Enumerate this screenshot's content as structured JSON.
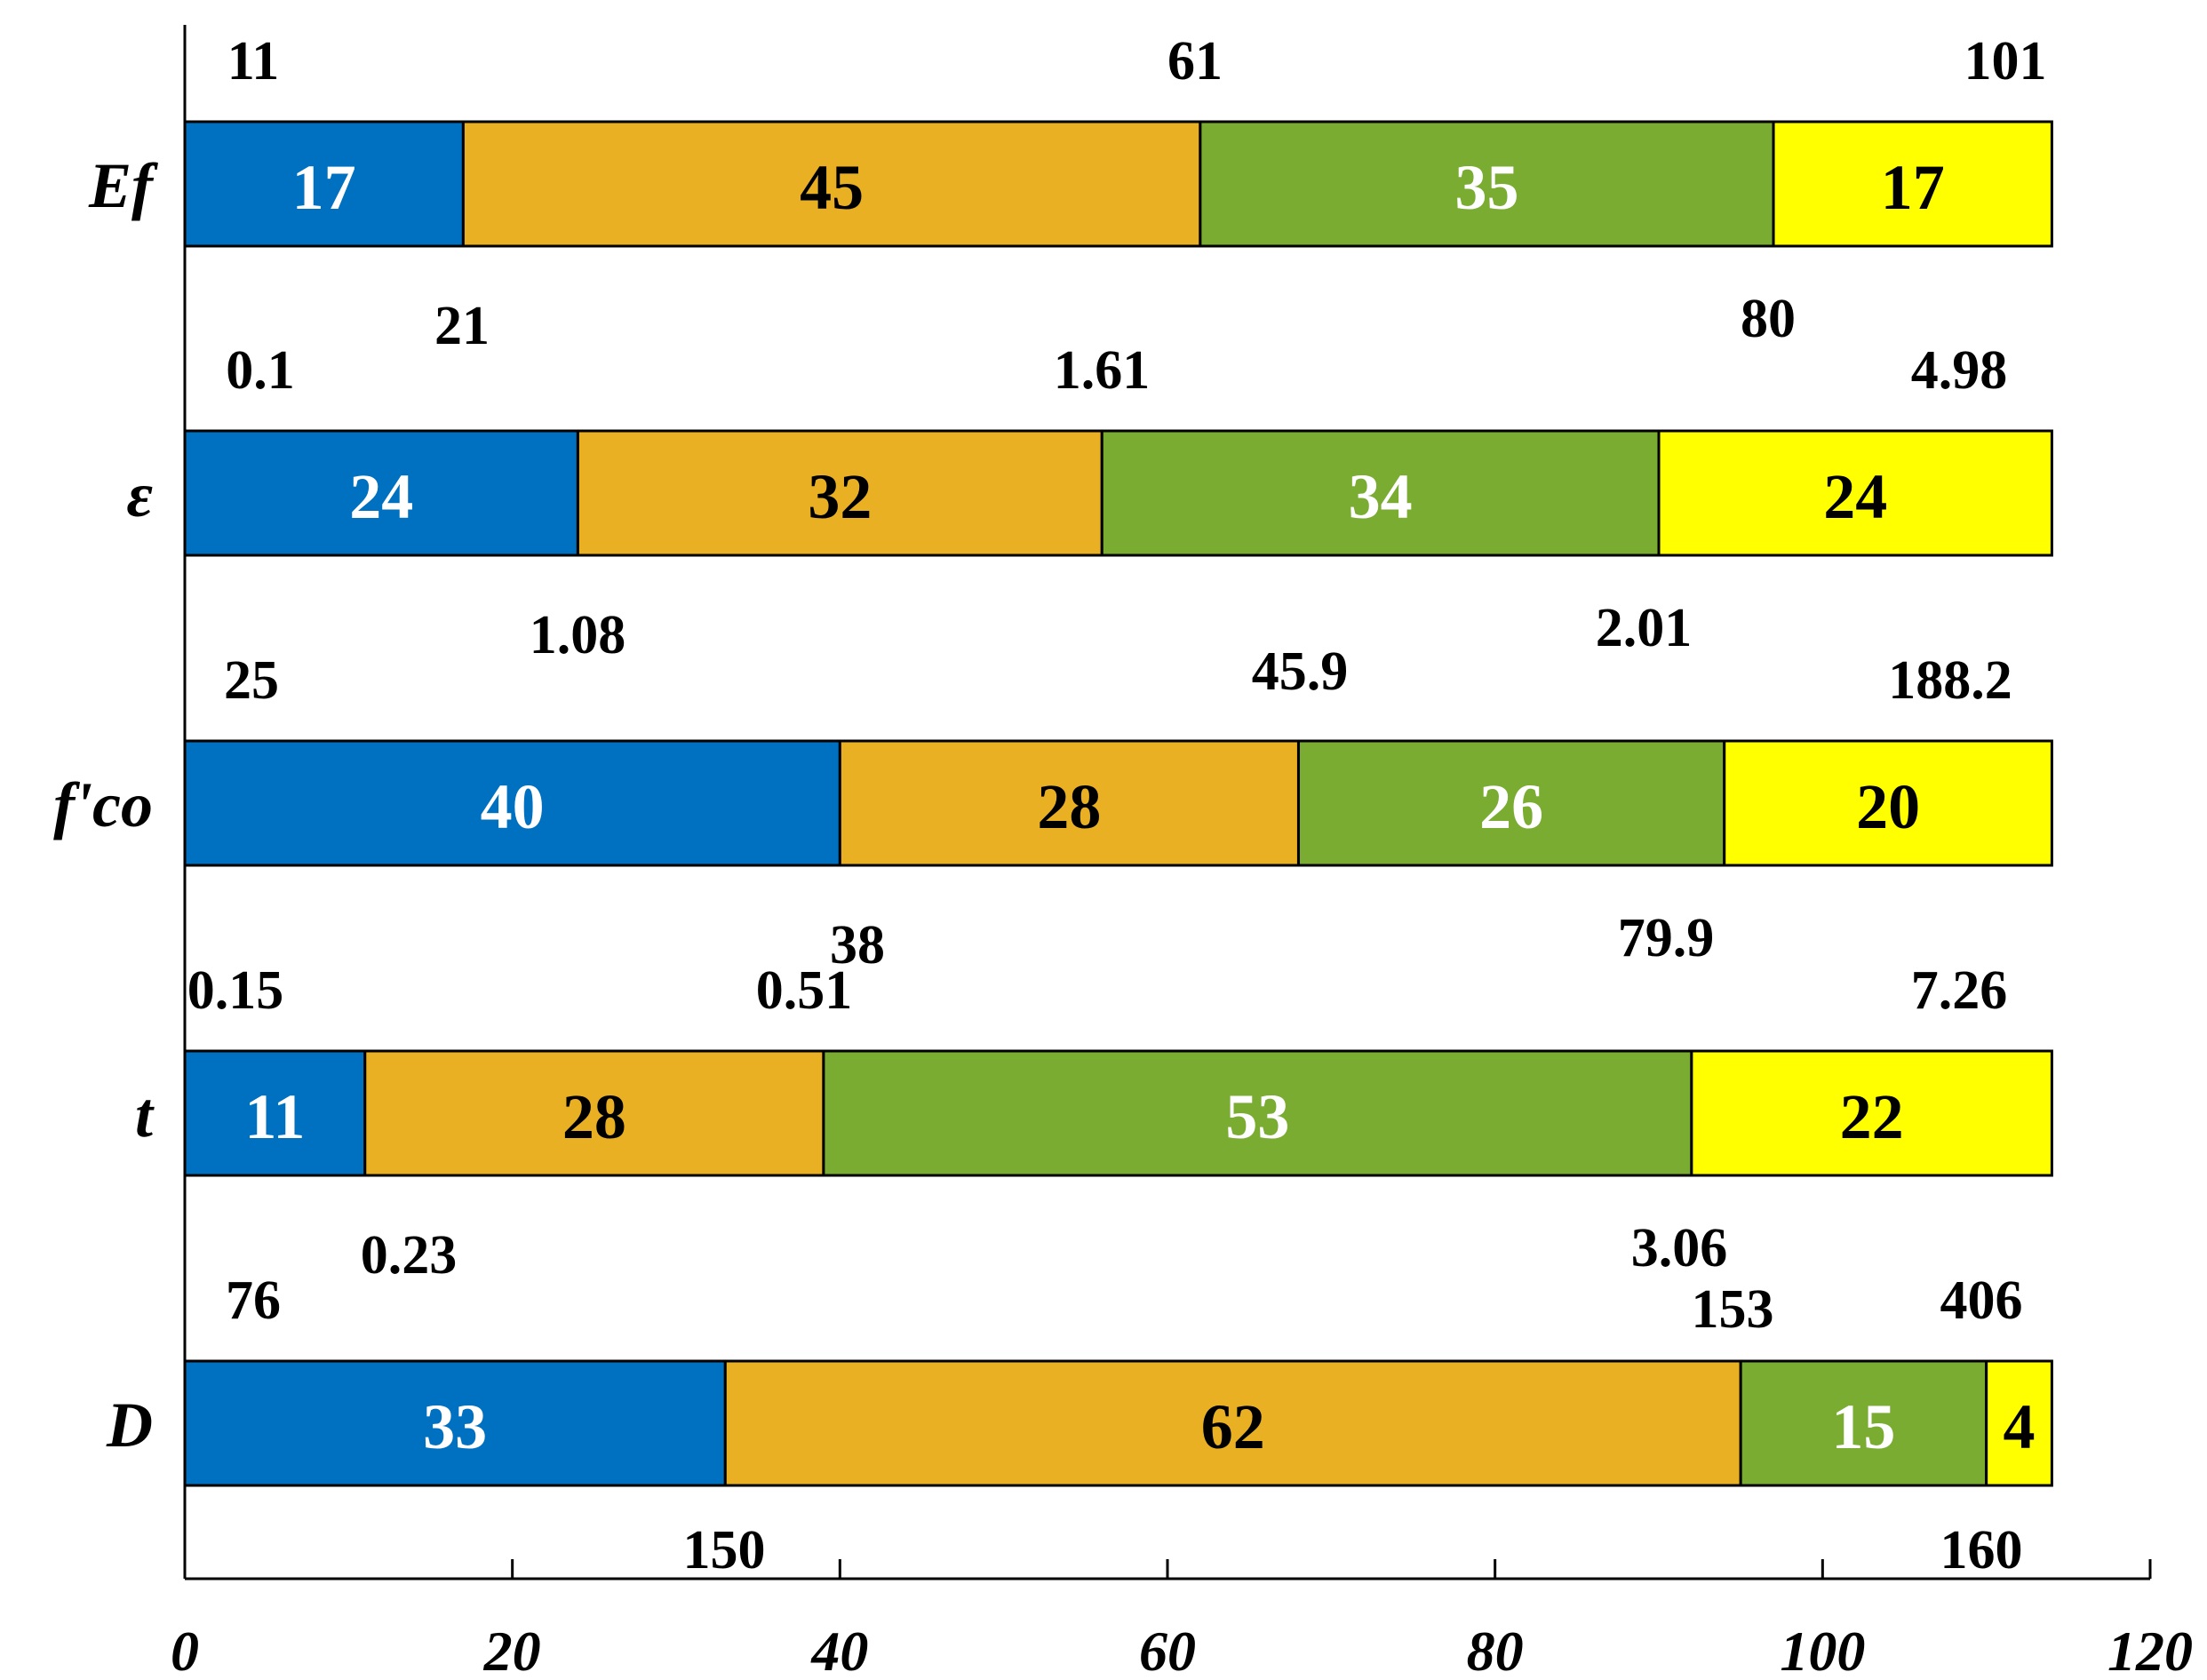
{
  "chart_data": {
    "type": "bar",
    "orientation": "horizontal",
    "stacked": true,
    "title": "",
    "xlabel": "",
    "ylabel": "",
    "xlim": [
      0,
      120
    ],
    "xticks": [
      "0",
      "20",
      "40",
      "60",
      "80",
      "100",
      "120"
    ],
    "grid": false,
    "legend": "none",
    "categories": [
      "Ef",
      "ε",
      "f'co",
      "t",
      "D"
    ],
    "segment_colors": [
      "#0070c0",
      "#eab024",
      "#7aac32",
      "#ffff00"
    ],
    "segment_text_colors": [
      "#ffffff",
      "#000000",
      "#ffffff",
      "#000000"
    ],
    "rows": [
      {
        "name": "Ef",
        "values": [
          17,
          45,
          35,
          17
        ],
        "labels": [
          "17",
          "45",
          "35",
          "17"
        ],
        "bounds": {
          "upper": [
            "11",
            "61",
            "101"
          ],
          "lower": [
            "21",
            "80"
          ]
        }
      },
      {
        "name": "ε",
        "values": [
          24,
          32,
          34,
          24
        ],
        "labels": [
          "24",
          "32",
          "34",
          "24"
        ],
        "bounds": {
          "upper": [
            "0.1",
            "1.61",
            "4.98"
          ],
          "lower": [
            "1.08",
            "2.01"
          ]
        }
      },
      {
        "name": "f'co",
        "values": [
          40,
          28,
          26,
          20
        ],
        "labels": [
          "40",
          "28",
          "26",
          "20"
        ],
        "bounds": {
          "upper": [
            "25",
            "45.9",
            "188.2"
          ],
          "lower": [
            "38",
            "79.9"
          ]
        }
      },
      {
        "name": "t",
        "values": [
          11,
          28,
          53,
          22
        ],
        "labels": [
          "11",
          "28",
          "53",
          "22"
        ],
        "bounds": {
          "upper": [
            "0.15",
            "0.51",
            "7.26"
          ],
          "lower": [
            "0.23",
            "3.06"
          ]
        }
      },
      {
        "name": "D",
        "values": [
          33,
          62,
          15,
          4
        ],
        "labels": [
          "33",
          "62",
          "15",
          "4"
        ],
        "bounds": {
          "upper": [
            "76",
            "153",
            "406"
          ],
          "lower": [
            "150",
            "160"
          ]
        }
      }
    ]
  }
}
